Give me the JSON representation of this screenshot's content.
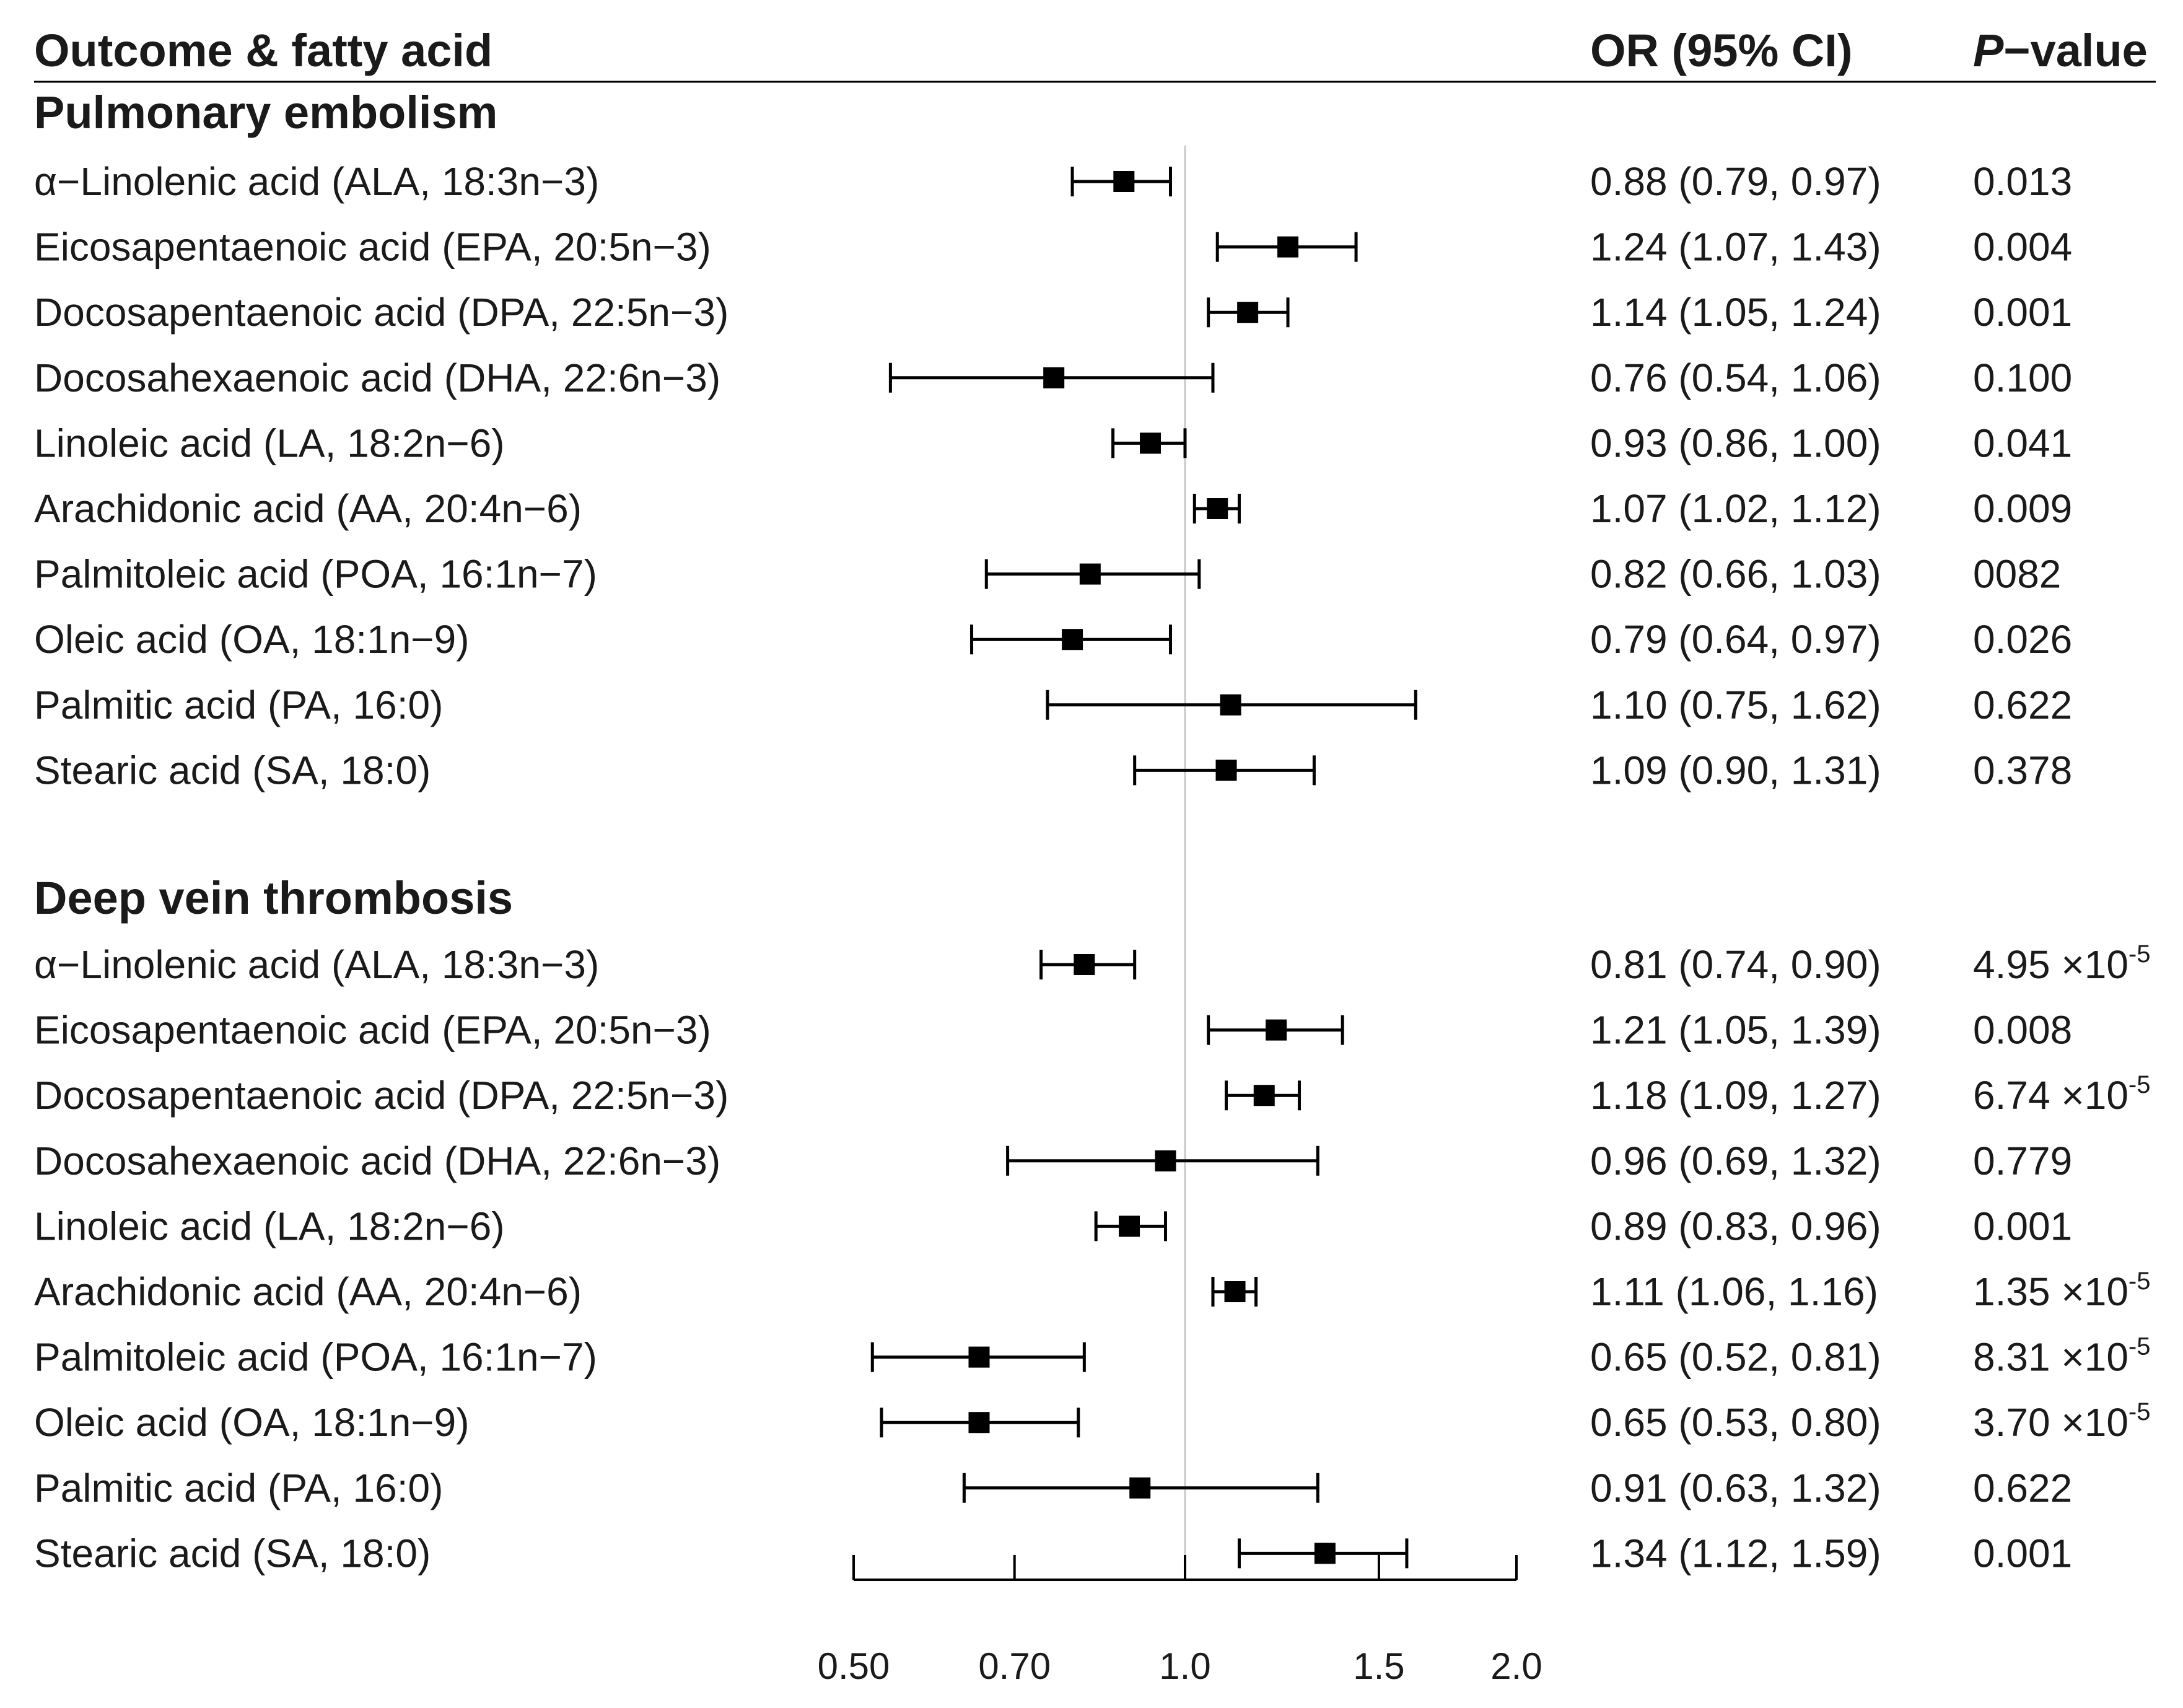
{
  "header": {
    "col_label": "Outcome & fatty acid",
    "col_or": "OR (95% CI)",
    "col_p_italic": "P",
    "col_p_rest": "−value"
  },
  "chart_data": {
    "type": "forest",
    "x_scale": "log",
    "xlim": [
      0.5,
      2.0
    ],
    "reference_line": 1.0,
    "x_ticks": [
      0.5,
      0.7,
      1.0,
      1.5,
      2.0
    ],
    "x_tick_labels": [
      "0.50",
      "0.70",
      "1.0",
      "1.5",
      "2.0"
    ],
    "groups": [
      {
        "name": "Pulmonary embolism",
        "rows": [
          {
            "label": "α−Linolenic acid (ALA, 18:3n−3)",
            "or": 0.88,
            "lo": 0.79,
            "hi": 0.97,
            "or_text": "0.88 (0.79, 0.97)",
            "p_base": "0.013",
            "p_exp": ""
          },
          {
            "label": "Eicosapentaenoic acid (EPA, 20:5n−3)",
            "or": 1.24,
            "lo": 1.07,
            "hi": 1.43,
            "or_text": "1.24 (1.07, 1.43)",
            "p_base": "0.004",
            "p_exp": ""
          },
          {
            "label": "Docosapentaenoic acid (DPA, 22:5n−3)",
            "or": 1.14,
            "lo": 1.05,
            "hi": 1.24,
            "or_text": "1.14 (1.05, 1.24)",
            "p_base": "0.001",
            "p_exp": ""
          },
          {
            "label": "Docosahexaenoic acid (DHA, 22:6n−3)",
            "or": 0.76,
            "lo": 0.54,
            "hi": 1.06,
            "or_text": "0.76 (0.54, 1.06)",
            "p_base": "0.100",
            "p_exp": ""
          },
          {
            "label": "Linoleic acid (LA, 18:2n−6)",
            "or": 0.93,
            "lo": 0.86,
            "hi": 1.0,
            "or_text": "0.93 (0.86, 1.00)",
            "p_base": "0.041",
            "p_exp": ""
          },
          {
            "label": "Arachidonic acid (AA, 20:4n−6)",
            "or": 1.07,
            "lo": 1.02,
            "hi": 1.12,
            "or_text": "1.07 (1.02, 1.12)",
            "p_base": "0.009",
            "p_exp": ""
          },
          {
            "label": "Palmitoleic acid (POA, 16:1n−7)",
            "or": 0.82,
            "lo": 0.66,
            "hi": 1.03,
            "or_text": "0.82 (0.66, 1.03)",
            "p_base": "0082",
            "p_exp": ""
          },
          {
            "label": "Oleic acid (OA, 18:1n−9)",
            "or": 0.79,
            "lo": 0.64,
            "hi": 0.97,
            "or_text": "0.79 (0.64, 0.97)",
            "p_base": "0.026",
            "p_exp": ""
          },
          {
            "label": "Palmitic acid (PA, 16:0)",
            "or": 1.1,
            "lo": 0.75,
            "hi": 1.62,
            "or_text": "1.10 (0.75, 1.62)",
            "p_base": "0.622",
            "p_exp": ""
          },
          {
            "label": "Stearic acid (SA, 18:0)",
            "or": 1.09,
            "lo": 0.9,
            "hi": 1.31,
            "or_text": "1.09 (0.90, 1.31)",
            "p_base": "0.378",
            "p_exp": ""
          }
        ]
      },
      {
        "name": "Deep vein thrombosis",
        "rows": [
          {
            "label": "α−Linolenic acid (ALA, 18:3n−3)",
            "or": 0.81,
            "lo": 0.74,
            "hi": 0.9,
            "or_text": "0.81 (0.74, 0.90)",
            "p_base": "4.95 ×10",
            "p_exp": "-5"
          },
          {
            "label": "Eicosapentaenoic acid (EPA, 20:5n−3)",
            "or": 1.21,
            "lo": 1.05,
            "hi": 1.39,
            "or_text": "1.21 (1.05, 1.39)",
            "p_base": "0.008",
            "p_exp": ""
          },
          {
            "label": "Docosapentaenoic acid (DPA, 22:5n−3)",
            "or": 1.18,
            "lo": 1.09,
            "hi": 1.27,
            "or_text": "1.18 (1.09, 1.27)",
            "p_base": "6.74 ×10",
            "p_exp": "-5"
          },
          {
            "label": "Docosahexaenoic acid (DHA, 22:6n−3)",
            "or": 0.96,
            "lo": 0.69,
            "hi": 1.32,
            "or_text": "0.96 (0.69, 1.32)",
            "p_base": "0.779",
            "p_exp": ""
          },
          {
            "label": "Linoleic acid (LA, 18:2n−6)",
            "or": 0.89,
            "lo": 0.83,
            "hi": 0.96,
            "or_text": "0.89 (0.83, 0.96)",
            "p_base": "0.001",
            "p_exp": ""
          },
          {
            "label": "Arachidonic acid (AA, 20:4n−6)",
            "or": 1.11,
            "lo": 1.06,
            "hi": 1.16,
            "or_text": "1.11 (1.06, 1.16)",
            "p_base": "1.35 ×10",
            "p_exp": "-5"
          },
          {
            "label": "Palmitoleic acid (POA, 16:1n−7)",
            "or": 0.65,
            "lo": 0.52,
            "hi": 0.81,
            "or_text": "0.65 (0.52, 0.81)",
            "p_base": "8.31 ×10",
            "p_exp": "-5"
          },
          {
            "label": "Oleic acid (OA, 18:1n−9)",
            "or": 0.65,
            "lo": 0.53,
            "hi": 0.8,
            "or_text": "0.65 (0.53, 0.80)",
            "p_base": "3.70 ×10",
            "p_exp": "-5"
          },
          {
            "label": "Palmitic acid (PA, 16:0)",
            "or": 0.91,
            "lo": 0.63,
            "hi": 1.32,
            "or_text": "0.91 (0.63, 1.32)",
            "p_base": "0.622",
            "p_exp": ""
          },
          {
            "label": "Stearic acid (SA, 18:0)",
            "or": 1.34,
            "lo": 1.12,
            "hi": 1.59,
            "or_text": "1.34 (1.12, 1.59)",
            "p_base": "0.001",
            "p_exp": ""
          }
        ]
      }
    ]
  }
}
